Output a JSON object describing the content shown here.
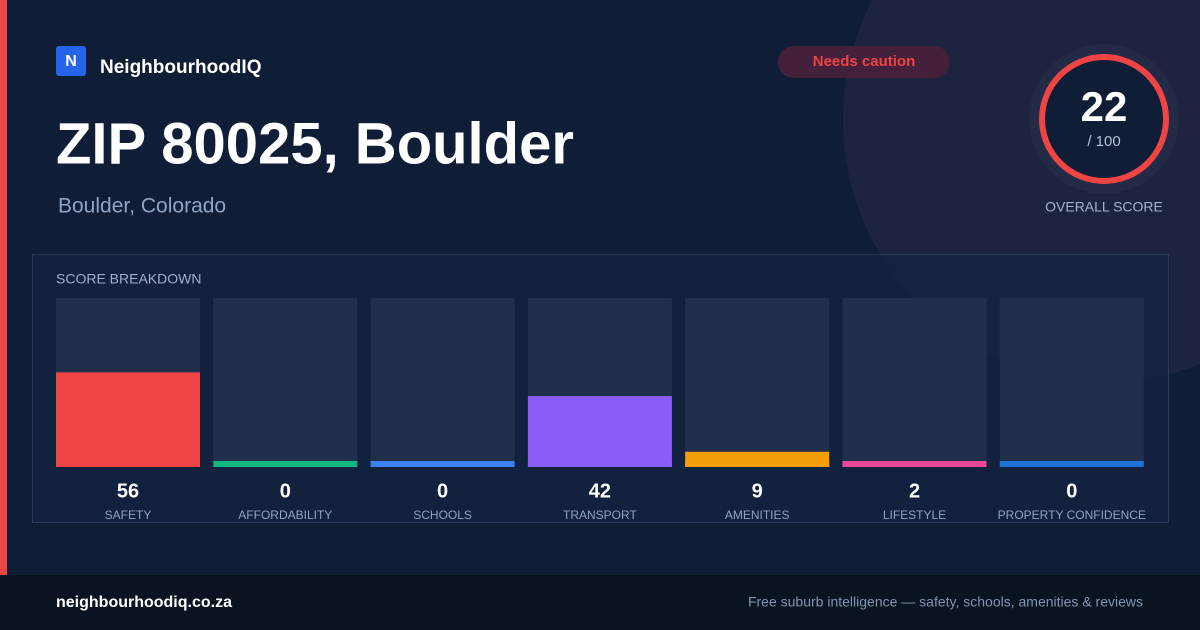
{
  "brand": {
    "logo": "N",
    "name": "NeighbourhoodIQ"
  },
  "badge": "Needs caution",
  "header": {
    "title": "ZIP 80025, Boulder",
    "subtitle": "Boulder, Colorado"
  },
  "score": {
    "value": 22,
    "max_label": "/ 100",
    "label": "OVERALL SCORE"
  },
  "chart_data": {
    "type": "bar",
    "title": "SCORE BREAKDOWN",
    "categories": [
      "SAFETY",
      "AFFORDABILITY",
      "SCHOOLS",
      "TRANSPORT",
      "AMENITIES",
      "LIFESTYLE",
      "PROPERTY CONFIDENCE"
    ],
    "values": [
      56,
      0,
      0,
      42,
      9,
      2,
      0
    ],
    "colors": [
      "#ef4444",
      "#10b981",
      "#3b82f6",
      "#8b5cf6",
      "#f59e0b",
      "#ec4899",
      "#1f6fd8"
    ],
    "ylim": [
      0,
      100
    ]
  },
  "footer": {
    "site": "neighbourhoodiq.co.za",
    "tagline": "Free suburb intelligence — safety, schools, amenities & reviews"
  }
}
